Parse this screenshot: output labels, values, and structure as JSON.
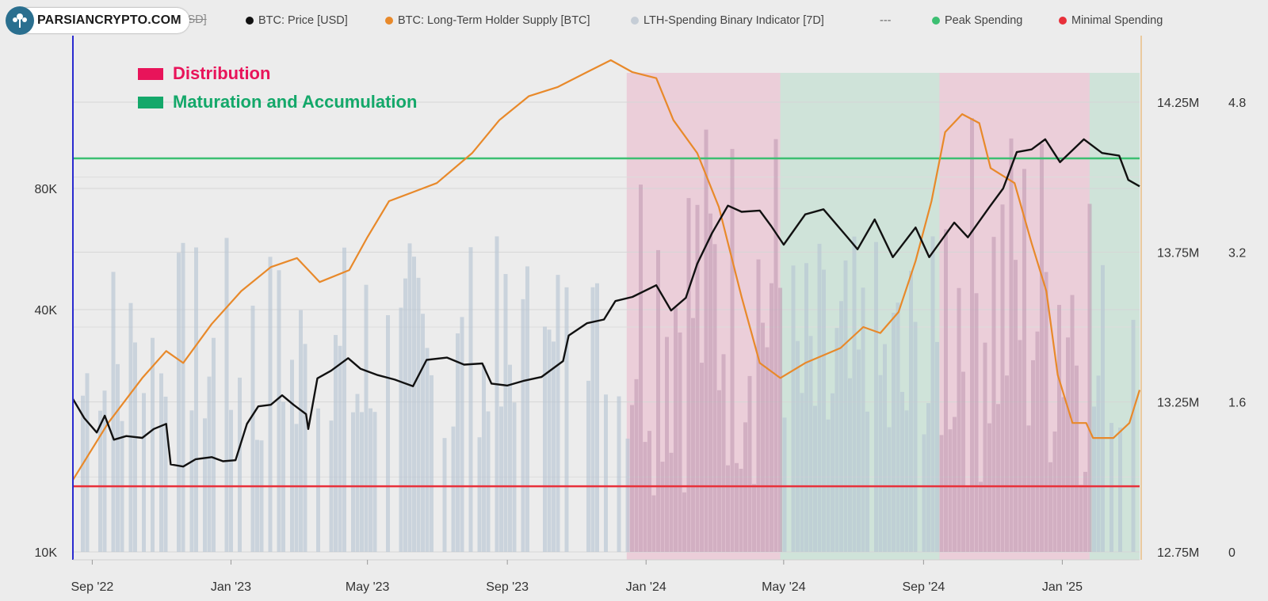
{
  "logo": {
    "text": "PARSIANCRYPTO.COM",
    "icon": "tree-logo-icon"
  },
  "legend": {
    "hidden_item": "USD]",
    "items": [
      {
        "label": "BTC: Price [USD]",
        "color": "#111111"
      },
      {
        "label": "BTC: Long-Term Holder Supply [BTC]",
        "color": "#e8892a"
      },
      {
        "label": "LTH-Spending Binary Indicator [7D]",
        "color": "#c5cdd6"
      },
      {
        "label": "Peak Spending",
        "color": "#3cbf72"
      },
      {
        "label": "Minimal Spending",
        "color": "#e8303a"
      }
    ],
    "separator": "---"
  },
  "regions_legend": [
    {
      "label": "Distribution",
      "color": "#e8145a"
    },
    {
      "label": "Maturation and Accumulation",
      "color": "#14a86a"
    }
  ],
  "chart_data": {
    "type": "line",
    "x_ticks": [
      "Sep '22",
      "Jan '23",
      "May '23",
      "Sep '23",
      "Jan '24",
      "May '24",
      "Sep '24",
      "Jan '25"
    ],
    "left_axis": {
      "scale": "log",
      "ticks": [
        "10K",
        "40K",
        "80K"
      ],
      "tick_values": [
        10000,
        40000,
        80000
      ]
    },
    "right_axis_supply": {
      "ticks": [
        "12.75M",
        "13.25M",
        "13.75M",
        "14.25M"
      ],
      "tick_values": [
        12750000,
        13250000,
        13750000,
        14250000
      ]
    },
    "right_axis_indicator": {
      "ticks": [
        "0",
        "1.6",
        "3.2",
        "4.8"
      ],
      "tick_values": [
        0,
        1.6,
        3.2,
        4.8
      ]
    },
    "regions": [
      {
        "type": "Distribution",
        "start": "2023-12-15",
        "end": "2024-04-28"
      },
      {
        "type": "Maturation and Accumulation",
        "start": "2024-04-28",
        "end": "2024-09-15"
      },
      {
        "type": "Distribution",
        "start": "2024-09-15",
        "end": "2025-01-25"
      },
      {
        "type": "Maturation and Accumulation",
        "start": "2025-01-25",
        "end": "2025-03-10"
      }
    ],
    "peak_spending_level": 4.2,
    "minimal_spending_level": 0.7,
    "series": [
      {
        "name": "BTC: Price [USD]",
        "axis": "left",
        "points": [
          [
            "2022-08-15",
            24000
          ],
          [
            "2022-08-25",
            21500
          ],
          [
            "2022-09-05",
            19800
          ],
          [
            "2022-09-12",
            21800
          ],
          [
            "2022-09-20",
            19000
          ],
          [
            "2022-10-01",
            19400
          ],
          [
            "2022-10-15",
            19200
          ],
          [
            "2022-10-25",
            20200
          ],
          [
            "2022-11-05",
            20800
          ],
          [
            "2022-11-09",
            16500
          ],
          [
            "2022-11-20",
            16300
          ],
          [
            "2022-12-01",
            17000
          ],
          [
            "2022-12-15",
            17200
          ],
          [
            "2022-12-25",
            16800
          ],
          [
            "2023-01-05",
            16900
          ],
          [
            "2023-01-15",
            20800
          ],
          [
            "2023-01-25",
            23000
          ],
          [
            "2023-02-05",
            23200
          ],
          [
            "2023-02-15",
            24500
          ],
          [
            "2023-02-25",
            23200
          ],
          [
            "2023-03-08",
            22000
          ],
          [
            "2023-03-10",
            20200
          ],
          [
            "2023-03-18",
            27000
          ],
          [
            "2023-03-30",
            28200
          ],
          [
            "2023-04-14",
            30300
          ],
          [
            "2023-04-25",
            28500
          ],
          [
            "2023-05-10",
            27500
          ],
          [
            "2023-05-25",
            26800
          ],
          [
            "2023-06-10",
            25800
          ],
          [
            "2023-06-22",
            30000
          ],
          [
            "2023-07-10",
            30400
          ],
          [
            "2023-07-25",
            29200
          ],
          [
            "2023-08-10",
            29400
          ],
          [
            "2023-08-18",
            26200
          ],
          [
            "2023-09-01",
            25900
          ],
          [
            "2023-09-15",
            26600
          ],
          [
            "2023-10-01",
            27200
          ],
          [
            "2023-10-20",
            29800
          ],
          [
            "2023-10-25",
            34500
          ],
          [
            "2023-11-10",
            37000
          ],
          [
            "2023-11-25",
            37800
          ],
          [
            "2023-12-05",
            42000
          ],
          [
            "2023-12-20",
            43000
          ],
          [
            "2024-01-10",
            46000
          ],
          [
            "2024-01-23",
            39800
          ],
          [
            "2024-02-05",
            42800
          ],
          [
            "2024-02-15",
            52000
          ],
          [
            "2024-02-28",
            62000
          ],
          [
            "2024-03-13",
            72500
          ],
          [
            "2024-03-25",
            70000
          ],
          [
            "2024-04-10",
            70500
          ],
          [
            "2024-04-20",
            64500
          ],
          [
            "2024-05-01",
            58000
          ],
          [
            "2024-05-20",
            69000
          ],
          [
            "2024-06-05",
            71000
          ],
          [
            "2024-06-25",
            61000
          ],
          [
            "2024-07-05",
            56500
          ],
          [
            "2024-07-20",
            67000
          ],
          [
            "2024-08-05",
            54000
          ],
          [
            "2024-08-25",
            64000
          ],
          [
            "2024-09-06",
            54000
          ],
          [
            "2024-09-28",
            65800
          ],
          [
            "2024-10-10",
            60500
          ],
          [
            "2024-10-29",
            72000
          ],
          [
            "2024-11-10",
            80000
          ],
          [
            "2024-11-22",
            98500
          ],
          [
            "2024-12-05",
            100000
          ],
          [
            "2024-12-17",
            106000
          ],
          [
            "2024-12-30",
            93000
          ],
          [
            "2025-01-20",
            106000
          ],
          [
            "2025-02-05",
            98000
          ],
          [
            "2025-02-20",
            96500
          ],
          [
            "2025-02-28",
            84000
          ],
          [
            "2025-03-10",
            81000
          ]
        ]
      },
      {
        "name": "BTC: Long-Term Holder Supply [BTC]",
        "axis": "right_supply",
        "points": [
          [
            "2022-08-15",
            12990000
          ],
          [
            "2022-09-15",
            13180000
          ],
          [
            "2022-10-15",
            13330000
          ],
          [
            "2022-11-05",
            13420000
          ],
          [
            "2022-11-20",
            13380000
          ],
          [
            "2022-12-15",
            13510000
          ],
          [
            "2023-01-10",
            13620000
          ],
          [
            "2023-02-05",
            13700000
          ],
          [
            "2023-02-28",
            13730000
          ],
          [
            "2023-03-20",
            13650000
          ],
          [
            "2023-04-15",
            13690000
          ],
          [
            "2023-05-01",
            13800000
          ],
          [
            "2023-05-20",
            13920000
          ],
          [
            "2023-06-10",
            13950000
          ],
          [
            "2023-07-01",
            13980000
          ],
          [
            "2023-08-01",
            14080000
          ],
          [
            "2023-08-25",
            14190000
          ],
          [
            "2023-09-20",
            14270000
          ],
          [
            "2023-10-15",
            14300000
          ],
          [
            "2023-11-10",
            14350000
          ],
          [
            "2023-12-01",
            14390000
          ],
          [
            "2023-12-20",
            14350000
          ],
          [
            "2024-01-10",
            14330000
          ],
          [
            "2024-01-25",
            14190000
          ],
          [
            "2024-02-15",
            14080000
          ],
          [
            "2024-03-05",
            13900000
          ],
          [
            "2024-03-25",
            13600000
          ],
          [
            "2024-04-10",
            13380000
          ],
          [
            "2024-04-28",
            13330000
          ],
          [
            "2024-05-20",
            13380000
          ],
          [
            "2024-06-20",
            13430000
          ],
          [
            "2024-07-10",
            13500000
          ],
          [
            "2024-07-25",
            13480000
          ],
          [
            "2024-08-10",
            13550000
          ],
          [
            "2024-08-25",
            13720000
          ],
          [
            "2024-09-08",
            13920000
          ],
          [
            "2024-09-20",
            14150000
          ],
          [
            "2024-10-05",
            14210000
          ],
          [
            "2024-10-20",
            14180000
          ],
          [
            "2024-10-30",
            14030000
          ],
          [
            "2024-11-20",
            13980000
          ],
          [
            "2024-12-05",
            13780000
          ],
          [
            "2024-12-18",
            13620000
          ],
          [
            "2024-12-28",
            13340000
          ],
          [
            "2025-01-10",
            13180000
          ],
          [
            "2025-01-22",
            13180000
          ],
          [
            "2025-01-28",
            13130000
          ],
          [
            "2025-02-15",
            13130000
          ],
          [
            "2025-03-01",
            13180000
          ],
          [
            "2025-03-10",
            13290000
          ]
        ]
      }
    ]
  }
}
